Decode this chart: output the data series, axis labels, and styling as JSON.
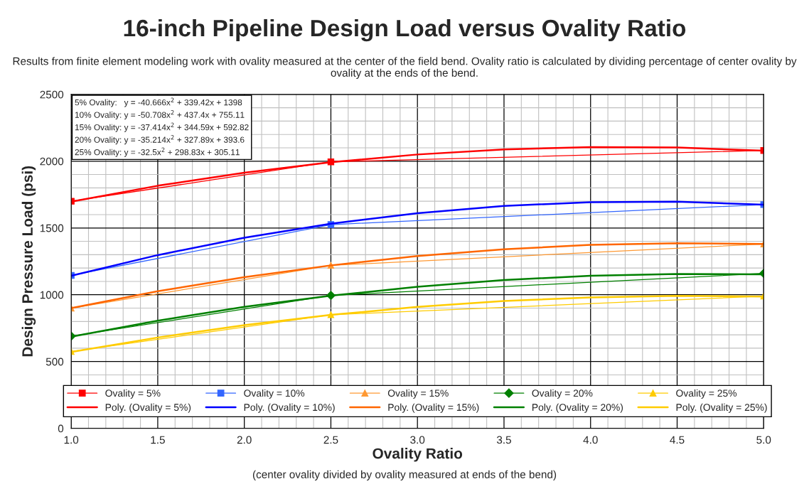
{
  "chart_data": {
    "type": "line",
    "title": "16-inch Pipeline Design Load versus Ovality Ratio",
    "subtitle": "Results from finite element modeling work with ovality measured at the center of the field bend. Ovality ratio is calculated by dividing percentage of center ovality by ovality at the ends of the bend.",
    "xlabel": "Ovality Ratio",
    "ylabel": "Design Pressure Load (psi)",
    "annotations": [
      "5% Ovality:   y = -40.666x$^{2}$ + 339.42x + 1398",
      "10% Ovality: y = -50.708x$^{2}$ + 437.4x + 755.11",
      "15% Ovality: y = -37.414x$^{2}$ + 344.59x + 592.82",
      "20% Ovality: y = -35.214x$^{2}$ + 327.89x + 393.6",
      "25% Ovality: y = -32.5x$^{2}$ + 298.83x + 305.11",
      "(center ovality divided by ovality measured at ends of the bend)"
    ],
    "series": [
      {
        "name": "Ovality = 5%",
        "color": "#ff0000",
        "marker": "square",
        "x": [
          1.0,
          2.5,
          5.0
        ],
        "values": [
          1700,
          1995,
          2080
        ]
      },
      {
        "name": "Poly. (Ovality = 5%)",
        "color": "#ff0000",
        "x": [
          1.0,
          1.5,
          2.0,
          2.5,
          3.0,
          3.5,
          4.0,
          4.5,
          5.0
        ],
        "values": [
          1697,
          1816,
          1914,
          1992,
          2050,
          2088,
          2105,
          2102,
          2078
        ]
      },
      {
        "name": "Ovality = 10%",
        "color": "#3366ff",
        "marker": "square",
        "x": [
          1.0,
          2.5,
          5.0
        ],
        "values": [
          1145,
          1525,
          1675
        ]
      },
      {
        "name": "Poly. (Ovality = 10%)",
        "color": "#0000ff",
        "x": [
          1.0,
          1.5,
          2.0,
          2.5,
          3.0,
          3.5,
          4.0,
          4.5,
          5.0
        ],
        "values": [
          1142,
          1297,
          1427,
          1532,
          1611,
          1665,
          1693,
          1697,
          1674
        ]
      },
      {
        "name": "Ovality = 15%",
        "color": "#ff9933",
        "marker": "triangle",
        "x": [
          1.0,
          2.5,
          5.0
        ],
        "values": [
          900,
          1220,
          1380
        ]
      },
      {
        "name": "Poly. (Ovality = 15%)",
        "color": "#ff6600",
        "x": [
          1.0,
          1.5,
          2.0,
          2.5,
          3.0,
          3.5,
          4.0,
          4.5,
          5.0
        ],
        "values": [
          900,
          1026,
          1132,
          1220,
          1290,
          1341,
          1373,
          1386,
          1380
        ]
      },
      {
        "name": "Ovality = 20%",
        "color": "#008000",
        "marker": "diamond",
        "x": [
          1.0,
          2.5,
          5.0
        ],
        "values": [
          690,
          995,
          1160
        ]
      },
      {
        "name": "Poly. (Ovality = 20%)",
        "color": "#008000",
        "x": [
          1.0,
          1.5,
          2.0,
          2.5,
          3.0,
          3.5,
          4.0,
          4.5,
          5.0
        ],
        "values": [
          686,
          806,
          909,
          993,
          1060,
          1110,
          1142,
          1156,
          1153
        ]
      },
      {
        "name": "Ovality = 25%",
        "color": "#ffcc00",
        "marker": "triangle",
        "x": [
          1.0,
          2.5,
          5.0
        ],
        "values": [
          575,
          850,
          990
        ]
      },
      {
        "name": "Poly. (Ovality = 25%)",
        "color": "#ffcc00",
        "x": [
          1.0,
          1.5,
          2.0,
          2.5,
          3.0,
          3.5,
          4.0,
          4.5,
          5.0
        ],
        "values": [
          571,
          680,
          773,
          849,
          909,
          953,
          980,
          992,
          987
        ]
      }
    ],
    "xlim": [
      1.0,
      5.0
    ],
    "xticks": [
      {
        "value": 1.0,
        "label": "1.0"
      },
      {
        "value": 1.5,
        "label": "1.5"
      },
      {
        "value": 2.0,
        "label": "2.0"
      },
      {
        "value": 2.5,
        "label": "2.5"
      },
      {
        "value": 3.0,
        "label": "3.0"
      },
      {
        "value": 3.5,
        "label": "3.5"
      },
      {
        "value": 4.0,
        "label": "4.0"
      },
      {
        "value": 4.5,
        "label": "4.5"
      },
      {
        "value": 5.0,
        "label": "5.0"
      }
    ],
    "ylim": [
      0,
      2500
    ],
    "yticks": [
      0,
      500,
      1000,
      1500,
      2000,
      2500
    ],
    "grid": true,
    "legend": "bottom"
  }
}
